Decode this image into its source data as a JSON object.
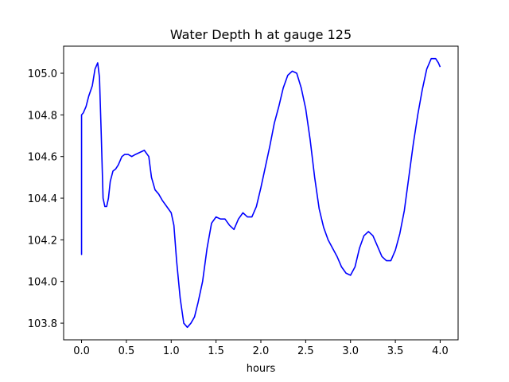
{
  "chart_data": {
    "type": "line",
    "title": "Water Depth h at gauge 125",
    "xlabel": "hours",
    "ylabel": "",
    "xlim": [
      -0.2,
      4.2
    ],
    "ylim": [
      103.72,
      105.13
    ],
    "xticks": [
      0.0,
      0.5,
      1.0,
      1.5,
      2.0,
      2.5,
      3.0,
      3.5,
      4.0
    ],
    "xtick_labels": [
      "0.0",
      "0.5",
      "1.0",
      "1.5",
      "2.0",
      "2.5",
      "3.0",
      "3.5",
      "4.0"
    ],
    "yticks": [
      103.8,
      104.0,
      104.2,
      104.4,
      104.6,
      104.8,
      105.0
    ],
    "ytick_labels": [
      "103.8",
      "104.0",
      "104.2",
      "104.4",
      "104.6",
      "104.8",
      "105.0"
    ],
    "grid": false,
    "line_color": "#0000ff",
    "series": [
      {
        "x": [
          0.0,
          0.0,
          0.0,
          0.0,
          0.02,
          0.05,
          0.08,
          0.12,
          0.15,
          0.18,
          0.2,
          0.22,
          0.24,
          0.26,
          0.28,
          0.3,
          0.32,
          0.35,
          0.38,
          0.41,
          0.45,
          0.48,
          0.52,
          0.56,
          0.6,
          0.65,
          0.7,
          0.75,
          0.78,
          0.82,
          0.86,
          0.9,
          0.95,
          1.0,
          1.03,
          1.06,
          1.1,
          1.14,
          1.18,
          1.22,
          1.26,
          1.3,
          1.35,
          1.4,
          1.45,
          1.5,
          1.55,
          1.6,
          1.65,
          1.7,
          1.75,
          1.8,
          1.85,
          1.9,
          1.95,
          2.0,
          2.05,
          2.1,
          2.15,
          2.2,
          2.25,
          2.3,
          2.35,
          2.4,
          2.45,
          2.5,
          2.55,
          2.6,
          2.65,
          2.7,
          2.75,
          2.8,
          2.85,
          2.9,
          2.95,
          3.0,
          3.05,
          3.1,
          3.15,
          3.2,
          3.25,
          3.3,
          3.35,
          3.4,
          3.45,
          3.5,
          3.55,
          3.6,
          3.65,
          3.7,
          3.75,
          3.8,
          3.85,
          3.9,
          3.95,
          3.98,
          4.0
        ],
        "y": [
          104.14,
          104.29,
          104.13,
          104.8,
          104.81,
          104.84,
          104.89,
          104.94,
          105.02,
          105.05,
          104.98,
          104.7,
          104.4,
          104.36,
          104.36,
          104.4,
          104.48,
          104.53,
          104.54,
          104.56,
          104.6,
          104.61,
          104.61,
          104.6,
          104.61,
          104.62,
          104.63,
          104.6,
          104.5,
          104.44,
          104.42,
          104.39,
          104.36,
          104.33,
          104.27,
          104.1,
          103.92,
          103.8,
          103.78,
          103.8,
          103.83,
          103.9,
          104.0,
          104.16,
          104.28,
          104.31,
          104.3,
          104.3,
          104.27,
          104.25,
          104.3,
          104.33,
          104.31,
          104.31,
          104.36,
          104.45,
          104.55,
          104.65,
          104.76,
          104.84,
          104.93,
          104.99,
          105.01,
          105.0,
          104.93,
          104.83,
          104.68,
          104.5,
          104.35,
          104.26,
          104.2,
          104.16,
          104.12,
          104.07,
          104.04,
          104.03,
          104.07,
          104.16,
          104.22,
          104.24,
          104.22,
          104.17,
          104.12,
          104.1,
          104.1,
          104.15,
          104.23,
          104.34,
          104.5,
          104.66,
          104.8,
          104.92,
          105.02,
          105.07,
          105.07,
          105.05,
          105.03
        ]
      }
    ]
  }
}
